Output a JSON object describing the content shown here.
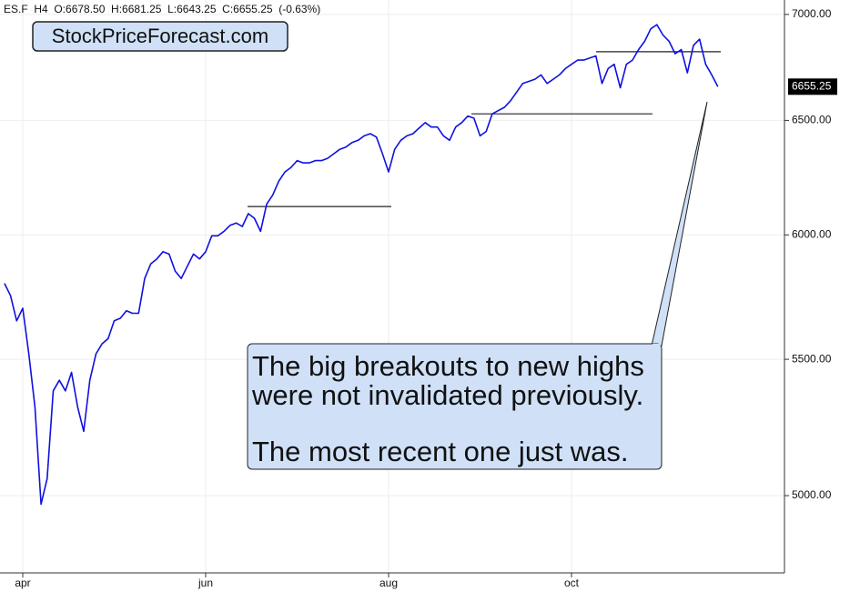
{
  "chart_data": {
    "type": "line",
    "header": "ES.F  H4  O:6678.50  H:6681.25  L:6643.25  C:6655.25  (-0.63%)",
    "title": "StockPriceForecast.com",
    "annotation": [
      "The big breakouts to new highs",
      "were not invalidated previously.",
      "The most recent one just was."
    ],
    "last_price_label": "6655.25",
    "log_scale": true,
    "grid": true,
    "ylim": [
      4737,
      7071
    ],
    "yticks": [
      {
        "value": 5000,
        "label": "5000.00"
      },
      {
        "value": 5500,
        "label": "5500.00"
      },
      {
        "value": 6000,
        "label": "6000.00"
      },
      {
        "value": 6500,
        "label": "6500.00"
      },
      {
        "value": 7000,
        "label": "7000.00"
      }
    ],
    "levels": [
      6120,
      6530,
      6820
    ],
    "categories": [
      null,
      null,
      null,
      "apr",
      null,
      null,
      null,
      null,
      null,
      null,
      null,
      null,
      null,
      null,
      null,
      null,
      null,
      null,
      null,
      null,
      null,
      null,
      null,
      null,
      null,
      null,
      null,
      null,
      null,
      null,
      null,
      null,
      null,
      "jun",
      null,
      null,
      null,
      null,
      null,
      null,
      null,
      null,
      null,
      null,
      null,
      null,
      null,
      null,
      null,
      null,
      null,
      null,
      null,
      null,
      null,
      null,
      null,
      null,
      null,
      null,
      null,
      null,
      null,
      "aug",
      null,
      null,
      null,
      null,
      null,
      null,
      null,
      null,
      null,
      null,
      null,
      null,
      null,
      null,
      null,
      null,
      null,
      null,
      null,
      null,
      null,
      null,
      null,
      null,
      null,
      null,
      null,
      null,
      null,
      "oct",
      null,
      null,
      null,
      null,
      null,
      null,
      null,
      null,
      null,
      null,
      null,
      null,
      null,
      null,
      null,
      null,
      null,
      null,
      null,
      null,
      null,
      null,
      null,
      null
    ],
    "series": [
      {
        "name": "ES.F",
        "color": "#1010e0",
        "values": [
          5800,
          5750,
          5650,
          5700,
          5520,
          5320,
          4970,
          5060,
          5380,
          5420,
          5380,
          5450,
          5320,
          5230,
          5420,
          5520,
          5560,
          5580,
          5650,
          5660,
          5690,
          5680,
          5680,
          5820,
          5880,
          5900,
          5930,
          5920,
          5850,
          5820,
          5870,
          5920,
          5900,
          5930,
          5996,
          5996,
          6015,
          6040,
          6050,
          6035,
          6090,
          6070,
          6015,
          6130,
          6170,
          6230,
          6270,
          6290,
          6320,
          6310,
          6310,
          6320,
          6320,
          6330,
          6350,
          6370,
          6380,
          6400,
          6410,
          6430,
          6440,
          6425,
          6350,
          6270,
          6370,
          6410,
          6430,
          6440,
          6465,
          6490,
          6470,
          6470,
          6430,
          6410,
          6470,
          6490,
          6520,
          6510,
          6430,
          6450,
          6530,
          6545,
          6560,
          6590,
          6630,
          6670,
          6680,
          6690,
          6710,
          6670,
          6690,
          6710,
          6740,
          6760,
          6780,
          6780,
          6790,
          6800,
          6670,
          6740,
          6760,
          6650,
          6760,
          6780,
          6830,
          6870,
          6930,
          6950,
          6900,
          6870,
          6810,
          6830,
          6720,
          6850,
          6880,
          6760,
          6710,
          6655.25
        ]
      }
    ]
  }
}
